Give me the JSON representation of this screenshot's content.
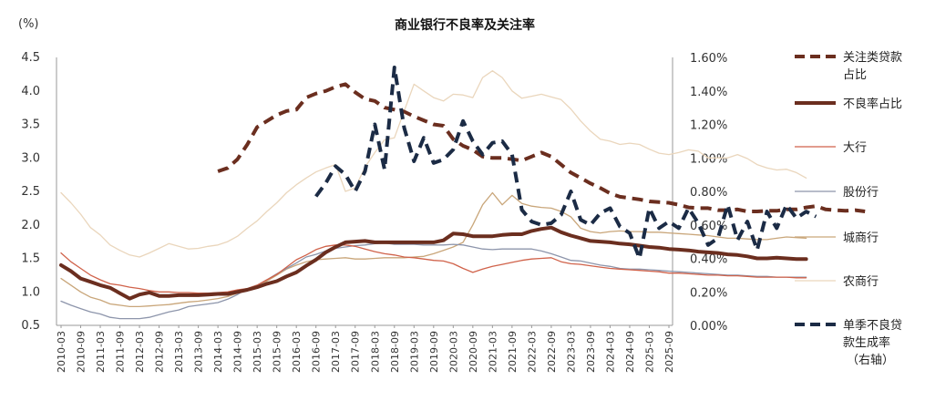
{
  "chart_data": {
    "type": "line",
    "title": "商业银行不良率及关注率",
    "y_left_unit": "(%)",
    "ylim_left": [
      0.5,
      4.5
    ],
    "ylim_right": [
      0.0,
      1.6
    ],
    "yticks_left": [
      "0.5",
      "1.0",
      "1.5",
      "2.0",
      "2.5",
      "3.0",
      "3.5",
      "4.0",
      "4.5"
    ],
    "yticks_right": [
      "0.00%",
      "0.20%",
      "0.40%",
      "0.60%",
      "0.80%",
      "1.00%",
      "1.20%",
      "1.40%",
      "1.60%"
    ],
    "x_ticks": [
      "2010-03",
      "2010-09",
      "2011-03",
      "2011-09",
      "2012-03",
      "2012-09",
      "2013-03",
      "2013-09",
      "2014-03",
      "2014-09",
      "2015-03",
      "2015-09",
      "2016-03",
      "2016-09",
      "2017-03",
      "2017-09",
      "2018-03",
      "2018-09",
      "2019-03",
      "2019-09",
      "2020-03",
      "2020-09",
      "2021-03",
      "2021-09",
      "2022-03",
      "2022-09",
      "2023-03",
      "2023-09",
      "2024-03",
      "2024-09",
      "2025-03",
      "2025-09"
    ],
    "legend_placement": "right",
    "grid": false,
    "series": [
      {
        "name": "关注类贷款占比",
        "axis": "left",
        "color": "#6b2e1f",
        "dash": "dashed",
        "width": 4,
        "start": "2014-03",
        "values": [
          2.8,
          2.85,
          2.98,
          3.2,
          3.46,
          3.55,
          3.64,
          3.7,
          3.72,
          3.9,
          3.96,
          4.0,
          4.06,
          4.1,
          3.98,
          3.88,
          3.85,
          3.75,
          3.72,
          3.69,
          3.62,
          3.56,
          3.5,
          3.48,
          3.28,
          3.18,
          3.12,
          3.02,
          3.0,
          3.0,
          2.98,
          2.96,
          3.02,
          3.08,
          3.02,
          2.9,
          2.78,
          2.7,
          2.62,
          2.55,
          2.47,
          2.42,
          2.4,
          2.38,
          2.35,
          2.34,
          2.33,
          2.3,
          2.26,
          2.25,
          2.25,
          2.22,
          2.22,
          2.23,
          2.2,
          2.2,
          2.21,
          2.21,
          2.23,
          2.23,
          2.26,
          2.28,
          2.23,
          2.22,
          2.21,
          2.22,
          2.2
        ]
      },
      {
        "name": "不良率占比",
        "axis": "left",
        "color": "#6b2e1f",
        "dash": "solid",
        "width": 4,
        "start": "2010-03",
        "values": [
          1.4,
          1.31,
          1.2,
          1.15,
          1.1,
          1.06,
          0.98,
          0.9,
          0.96,
          0.99,
          0.94,
          0.94,
          0.95,
          0.95,
          0.95,
          0.96,
          0.97,
          0.97,
          1.0,
          1.03,
          1.07,
          1.12,
          1.16,
          1.23,
          1.29,
          1.39,
          1.48,
          1.59,
          1.67,
          1.74,
          1.75,
          1.76,
          1.74,
          1.74,
          1.74,
          1.74,
          1.74,
          1.74,
          1.74,
          1.77,
          1.87,
          1.86,
          1.83,
          1.83,
          1.83,
          1.85,
          1.86,
          1.86,
          1.91,
          1.94,
          1.96,
          1.89,
          1.84,
          1.8,
          1.76,
          1.75,
          1.74,
          1.72,
          1.71,
          1.69,
          1.67,
          1.66,
          1.64,
          1.63,
          1.62,
          1.6,
          1.59,
          1.58,
          1.56,
          1.55,
          1.53,
          1.5,
          1.5,
          1.51,
          1.5,
          1.49,
          1.49
        ]
      },
      {
        "name": "大行",
        "axis": "left",
        "color": "#d0624a",
        "dash": "solid",
        "width": 1.3,
        "start": "2010-03",
        "values": [
          1.58,
          1.45,
          1.35,
          1.25,
          1.18,
          1.12,
          1.1,
          1.07,
          1.05,
          1.02,
          1.0,
          1.0,
          0.99,
          0.99,
          0.98,
          0.98,
          0.99,
          1.0,
          1.03,
          1.05,
          1.1,
          1.18,
          1.26,
          1.37,
          1.48,
          1.55,
          1.63,
          1.68,
          1.7,
          1.7,
          1.68,
          1.64,
          1.6,
          1.57,
          1.55,
          1.52,
          1.51,
          1.49,
          1.47,
          1.46,
          1.42,
          1.35,
          1.29,
          1.34,
          1.38,
          1.41,
          1.44,
          1.47,
          1.49,
          1.5,
          1.51,
          1.45,
          1.42,
          1.41,
          1.39,
          1.37,
          1.35,
          1.34,
          1.33,
          1.32,
          1.31,
          1.3,
          1.28,
          1.28,
          1.27,
          1.26,
          1.25,
          1.25,
          1.24,
          1.24,
          1.23,
          1.22,
          1.22,
          1.22,
          1.22,
          1.21,
          1.21
        ]
      },
      {
        "name": "股份行",
        "axis": "left",
        "color": "#8d95ab",
        "dash": "solid",
        "width": 1.3,
        "start": "2010-03",
        "values": [
          0.86,
          0.8,
          0.75,
          0.7,
          0.67,
          0.62,
          0.6,
          0.6,
          0.6,
          0.62,
          0.66,
          0.7,
          0.73,
          0.78,
          0.8,
          0.82,
          0.84,
          0.89,
          0.96,
          1.05,
          1.1,
          1.18,
          1.27,
          1.35,
          1.43,
          1.52,
          1.56,
          1.61,
          1.65,
          1.67,
          1.69,
          1.7,
          1.72,
          1.73,
          1.71,
          1.71,
          1.71,
          1.7,
          1.7,
          1.7,
          1.71,
          1.7,
          1.67,
          1.64,
          1.63,
          1.64,
          1.64,
          1.64,
          1.64,
          1.61,
          1.57,
          1.52,
          1.47,
          1.46,
          1.43,
          1.4,
          1.38,
          1.35,
          1.34,
          1.34,
          1.33,
          1.32,
          1.31,
          1.3,
          1.29,
          1.28,
          1.27,
          1.26,
          1.25,
          1.25,
          1.24,
          1.23,
          1.23,
          1.22,
          1.22,
          1.22,
          1.22
        ]
      },
      {
        "name": "城商行",
        "axis": "left",
        "color": "#c9a67a",
        "dash": "solid",
        "width": 1.3,
        "start": "2010-03",
        "values": [
          1.2,
          1.1,
          1.0,
          0.92,
          0.88,
          0.82,
          0.8,
          0.78,
          0.78,
          0.79,
          0.8,
          0.81,
          0.83,
          0.85,
          0.86,
          0.88,
          0.9,
          0.93,
          0.98,
          1.04,
          1.08,
          1.16,
          1.25,
          1.34,
          1.4,
          1.45,
          1.48,
          1.49,
          1.5,
          1.51,
          1.49,
          1.49,
          1.5,
          1.51,
          1.51,
          1.51,
          1.52,
          1.53,
          1.57,
          1.62,
          1.67,
          1.74,
          2.0,
          2.3,
          2.48,
          2.3,
          2.44,
          2.32,
          2.28,
          2.26,
          2.25,
          2.2,
          2.12,
          1.95,
          1.9,
          1.88,
          1.9,
          1.91,
          1.9,
          1.9,
          1.89,
          1.89,
          1.88,
          1.87,
          1.86,
          1.85,
          1.84,
          1.82,
          1.8,
          1.8,
          1.79,
          1.78,
          1.78,
          1.8,
          1.82,
          1.81,
          1.8
        ]
      },
      {
        "name": "农商行",
        "axis": "left",
        "color": "#ead6bc",
        "dash": "solid",
        "width": 1.3,
        "start": "2010-03",
        "values": [
          2.48,
          2.33,
          2.16,
          1.96,
          1.85,
          1.7,
          1.62,
          1.55,
          1.52,
          1.58,
          1.65,
          1.72,
          1.68,
          1.64,
          1.65,
          1.68,
          1.7,
          1.75,
          1.83,
          1.95,
          2.06,
          2.2,
          2.33,
          2.48,
          2.6,
          2.7,
          2.79,
          2.85,
          2.9,
          2.5,
          2.55,
          2.86,
          3.08,
          3.27,
          3.3,
          3.7,
          4.1,
          4.0,
          3.9,
          3.85,
          3.95,
          3.94,
          3.9,
          4.2,
          4.3,
          4.2,
          4.0,
          3.89,
          3.92,
          3.95,
          3.91,
          3.87,
          3.73,
          3.55,
          3.4,
          3.28,
          3.25,
          3.2,
          3.22,
          3.2,
          3.13,
          3.07,
          3.05,
          3.08,
          3.12,
          3.1,
          3.0,
          3.0,
          3.0,
          3.05,
          2.99,
          2.9,
          2.85,
          2.82,
          2.83,
          2.78,
          2.7
        ]
      },
      {
        "name": "单季不良贷款生成率（右轴）",
        "axis": "right",
        "color": "#1b2b45",
        "dash": "dashed",
        "width": 4,
        "start": "2016-09",
        "values": [
          0.77,
          0.85,
          0.95,
          0.9,
          0.8,
          0.92,
          1.2,
          0.93,
          1.54,
          1.18,
          0.98,
          1.12,
          0.97,
          0.99,
          1.05,
          1.22,
          1.1,
          1.02,
          1.09,
          1.1,
          1.02,
          0.69,
          0.62,
          0.6,
          0.61,
          0.66,
          0.8,
          0.63,
          0.6,
          0.67,
          0.7,
          0.59,
          0.55,
          0.4,
          0.7,
          0.58,
          0.62,
          0.58,
          0.7,
          0.61,
          0.48,
          0.52,
          0.72,
          0.51,
          0.62,
          0.45,
          0.68,
          0.58,
          0.72,
          0.64,
          0.68,
          0.65
        ]
      }
    ]
  },
  "legend": {
    "items": [
      {
        "lines": [
          "关注类贷款",
          "占比"
        ]
      },
      {
        "lines": [
          "不良率占比"
        ]
      },
      {
        "lines": [
          "大行"
        ]
      },
      {
        "lines": [
          "股份行"
        ]
      },
      {
        "lines": [
          "城商行"
        ]
      },
      {
        "lines": [
          "农商行"
        ]
      },
      {
        "lines": [
          "单季不良贷",
          "款生成率",
          "（右轴）"
        ]
      }
    ]
  }
}
